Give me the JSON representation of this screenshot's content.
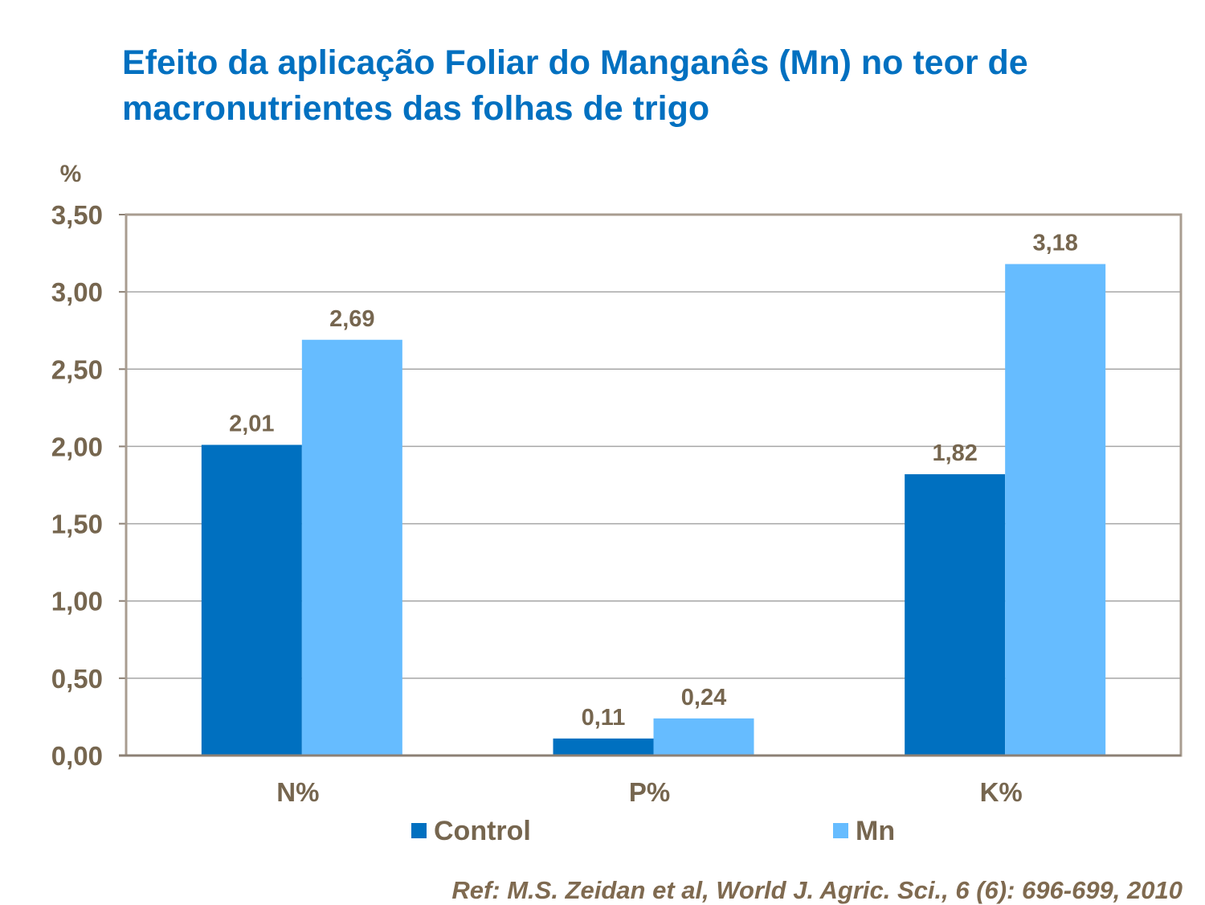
{
  "chart_data": {
    "type": "bar",
    "title": "Efeito da aplicação Foliar do Manganês (Mn) no teor de macronutrientes das folhas de trigo",
    "ylabel": "%",
    "categories": [
      "N%",
      "P%",
      "K%"
    ],
    "series": [
      {
        "name": "Control",
        "values": [
          2.01,
          0.11,
          1.82
        ],
        "labels": [
          "2,01",
          "0,11",
          "1,82"
        ],
        "color": "#0070C0"
      },
      {
        "name": "Mn",
        "values": [
          2.69,
          0.24,
          3.18
        ],
        "labels": [
          "2,69",
          "0,24",
          "3,18"
        ],
        "color": "#66BCFF"
      }
    ],
    "ylim": [
      0,
      3.5
    ],
    "yticks": [
      0,
      0.5,
      1,
      1.5,
      2,
      2.5,
      3,
      3.5
    ],
    "ytick_labels": [
      "0,00",
      "0,50",
      "1,00",
      "1,50",
      "2,00",
      "2,50",
      "3,00",
      "3,50"
    ],
    "grid": true,
    "legend_placement": "bottom",
    "reference": "Ref: M.S. Zeidan et al, World J. Agric. Sci., 6 (6): 696-699, 2010"
  }
}
